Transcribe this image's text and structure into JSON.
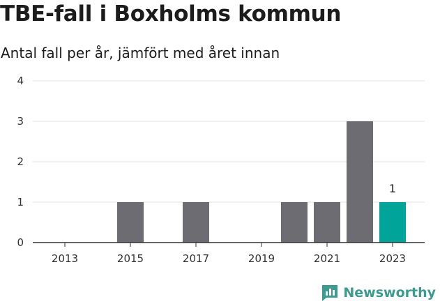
{
  "chart_data": {
    "type": "bar",
    "title": "TBE-fall i Boxholms kommun",
    "subtitle": "Antal fall per år, jämfört med året innan",
    "categories": [
      "2013",
      "2014",
      "2015",
      "2016",
      "2017",
      "2018",
      "2019",
      "2020",
      "2021",
      "2022",
      "2023"
    ],
    "values": [
      0,
      0,
      1,
      0,
      1,
      0,
      0,
      1,
      1,
      3,
      1
    ],
    "x_tick_labels": [
      "2013",
      "2015",
      "2017",
      "2019",
      "2021",
      "2023"
    ],
    "y_ticks": [
      0,
      1,
      2,
      3,
      4
    ],
    "ylim": [
      0,
      4
    ],
    "grid": true,
    "highlight_category": "2023",
    "data_labels": [
      {
        "category": "2023",
        "text": "1"
      }
    ],
    "colors": {
      "bar": "#6d6c72",
      "highlight": "#00a499",
      "grid": "#e3e3e3",
      "axis": "#333333"
    }
  },
  "brand": {
    "name": "Newsworthy",
    "icon": "newsworthy-logo-icon",
    "color": "#3c9a8f"
  }
}
